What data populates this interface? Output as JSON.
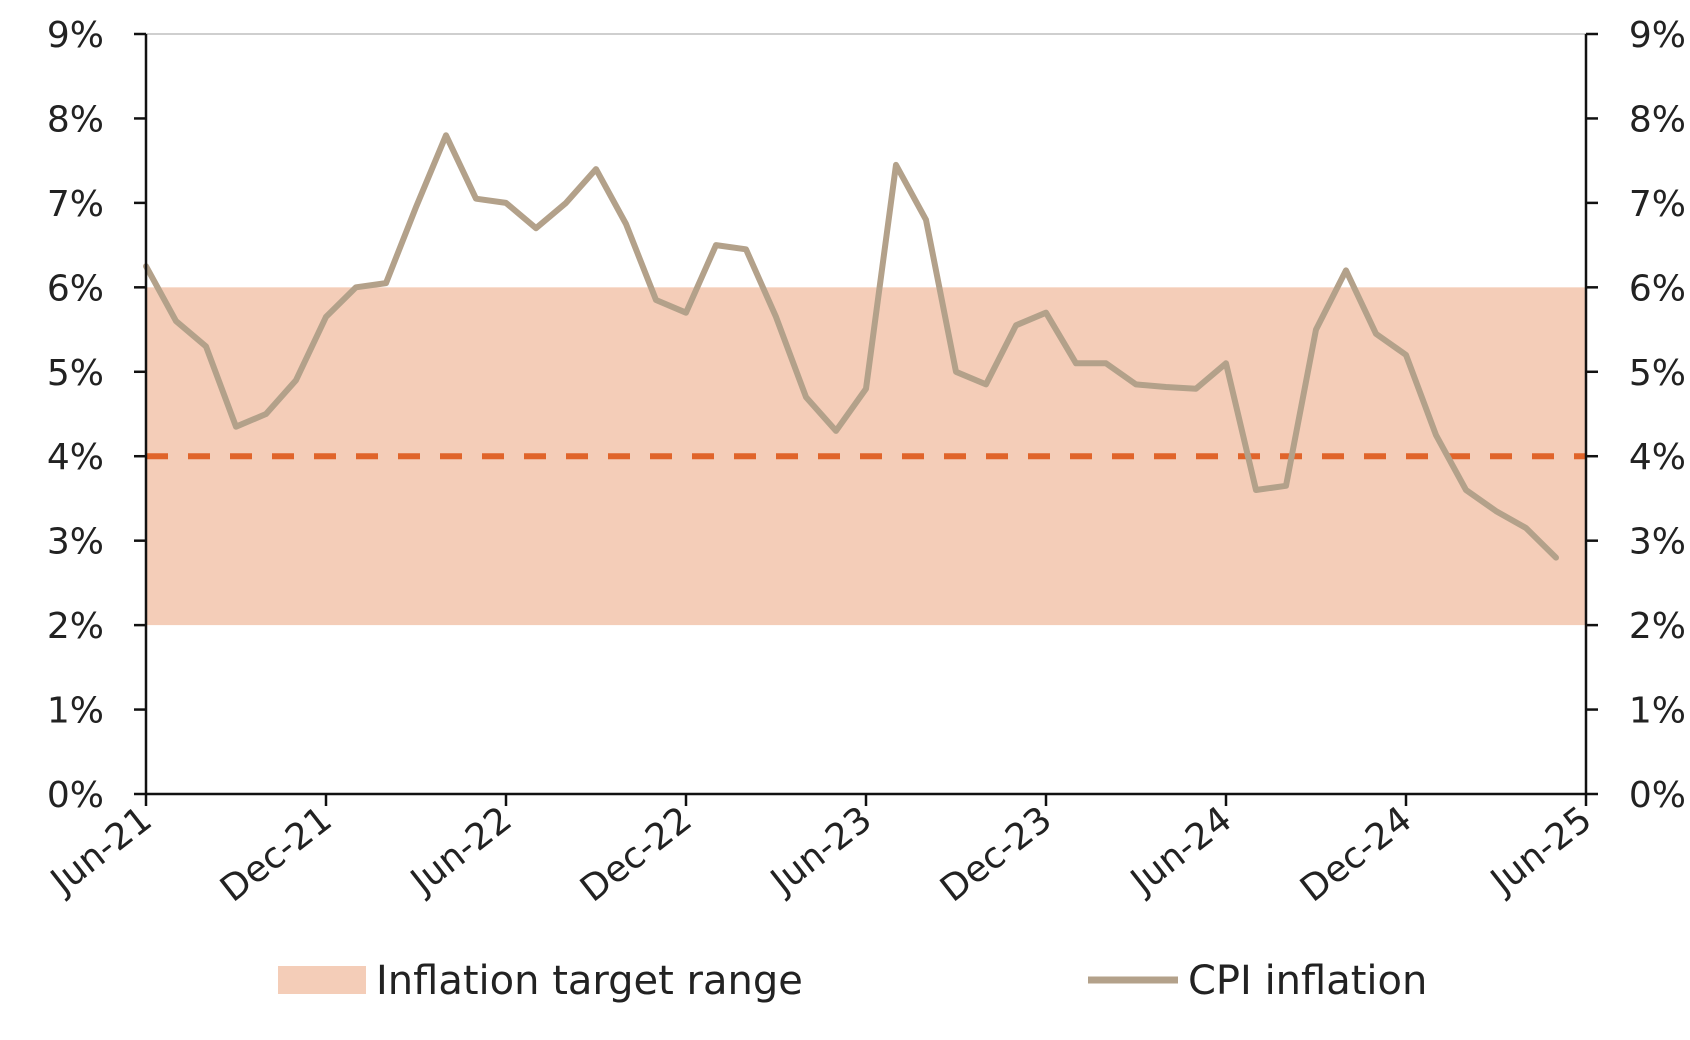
{
  "chart_data": {
    "type": "line",
    "title": "",
    "xlabel": "",
    "ylabel": "",
    "ylim": [
      0,
      9
    ],
    "y_ticks": [
      "0%",
      "1%",
      "2%",
      "3%",
      "4%",
      "5%",
      "6%",
      "7%",
      "8%",
      "9%"
    ],
    "y_right_ticks": [
      "0%",
      "1%",
      "2%",
      "3%",
      "4%",
      "5%",
      "6%",
      "7%",
      "8%",
      "9%"
    ],
    "x_ticks": [
      "Jun-21",
      "Dec-21",
      "Jun-22",
      "Dec-22",
      "Jun-23",
      "Dec-23",
      "Jun-24",
      "Dec-24",
      "Jun-25"
    ],
    "grid": false,
    "target_range": {
      "name": "Inflation target range",
      "low": 2,
      "high": 6,
      "color": "#f4cdb8"
    },
    "target_midpoint": {
      "value": 4,
      "color": "#e0642a"
    },
    "legend": {
      "position": "bottom"
    },
    "x": [
      "Jun-21",
      "Jul-21",
      "Aug-21",
      "Sep-21",
      "Oct-21",
      "Nov-21",
      "Dec-21",
      "Jan-22",
      "Feb-22",
      "Mar-22",
      "Apr-22",
      "May-22",
      "Jun-22",
      "Jul-22",
      "Aug-22",
      "Sep-22",
      "Oct-22",
      "Nov-22",
      "Dec-22",
      "Jan-23",
      "Feb-23",
      "Mar-23",
      "Apr-23",
      "May-23",
      "Jun-23",
      "Jul-23",
      "Aug-23",
      "Sep-23",
      "Oct-23",
      "Nov-23",
      "Dec-23",
      "Jan-24",
      "Feb-24",
      "Mar-24",
      "Apr-24",
      "May-24",
      "Jun-24",
      "Jul-24",
      "Aug-24",
      "Sep-24",
      "Oct-24",
      "Nov-24",
      "Dec-24",
      "Jan-25",
      "Feb-25",
      "Mar-25",
      "Apr-25",
      "May-25"
    ],
    "series": [
      {
        "name": "CPI inflation",
        "color": "#b3a18a",
        "values": [
          6.25,
          5.6,
          5.3,
          4.35,
          4.5,
          4.9,
          5.65,
          6.0,
          6.05,
          6.95,
          7.8,
          7.05,
          7.0,
          6.7,
          7.0,
          7.4,
          6.75,
          5.85,
          5.7,
          6.5,
          6.45,
          5.65,
          4.7,
          4.3,
          4.8,
          7.45,
          6.8,
          5.0,
          4.85,
          5.55,
          5.7,
          5.1,
          5.1,
          4.85,
          4.82,
          4.8,
          5.1,
          3.6,
          3.65,
          5.5,
          6.2,
          5.45,
          5.2,
          4.25,
          3.6,
          3.35,
          3.15,
          2.8
        ]
      }
    ]
  }
}
